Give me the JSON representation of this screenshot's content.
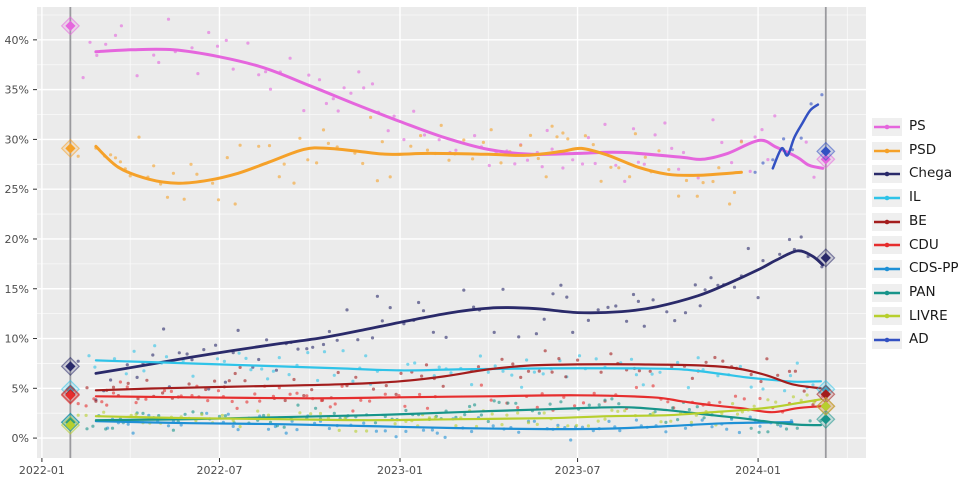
{
  "chart_data": {
    "type": "line",
    "subtype": "poll-tracker: jittered poll scatter + smoothed trend lines + election result diamonds",
    "title": "",
    "legend_position": "right",
    "panel": {
      "bg": "#ebebeb",
      "grid_major_color": "#ffffff",
      "grid_minor_color": "#fafafa"
    },
    "x_axis": {
      "start_date": "2021-12-27",
      "end_date": "2024-04-20",
      "tick_dates": [
        "2022-01-01",
        "2022-07-01",
        "2023-01-01",
        "2023-07-01",
        "2024-01-01"
      ],
      "tick_labels": [
        "2022-01",
        "2022-07",
        "2023-01",
        "2023-07",
        "2024-01"
      ],
      "minor_tick_dates": [
        "2022-04-01",
        "2022-10-01",
        "2023-04-01",
        "2023-10-01",
        "2024-04-01"
      ]
    },
    "y_axis": {
      "unit": "%",
      "min": -2.0,
      "max": 43.3,
      "tick_values": [
        0,
        5,
        10,
        15,
        20,
        25,
        30,
        35,
        40
      ],
      "tick_labels": [
        "0%",
        "5%",
        "10%",
        "15%",
        "20%",
        "25%",
        "30%",
        "35%",
        "40%"
      ],
      "minor_tick_values": [
        2.5,
        7.5,
        12.5,
        17.5,
        22.5,
        27.5,
        32.5,
        37.5,
        42.5
      ]
    },
    "elections": [
      {
        "name": "2022-legislative-election",
        "date": "2022-01-30",
        "line_color": "#9a9a9e"
      },
      {
        "name": "2024-legislative-election",
        "date": "2024-03-10",
        "line_color": "#9a9a9e"
      }
    ],
    "scatter_style": {
      "radius": 1.6,
      "opacity": 0.6,
      "seed": 11,
      "note": "dots are jittered poll results generated around each trend"
    },
    "series": [
      {
        "name": "PS",
        "color": "#e566dd",
        "line_width": 3.0,
        "scatter_amp": 3.0,
        "results": {
          "2022-01-30": 41.4,
          "2024-03-10": 28.0
        },
        "trend": [
          [
            "2022-02-25",
            38.8
          ],
          [
            "2022-04-01",
            39.0
          ],
          [
            "2022-05-15",
            39.0
          ],
          [
            "2022-07-01",
            38.3
          ],
          [
            "2022-08-15",
            37.2
          ],
          [
            "2022-10-01",
            35.4
          ],
          [
            "2022-11-15",
            33.6
          ],
          [
            "2023-01-01",
            31.8
          ],
          [
            "2023-02-15",
            30.2
          ],
          [
            "2023-04-01",
            29.0
          ],
          [
            "2023-05-15",
            28.5
          ],
          [
            "2023-07-01",
            28.6
          ],
          [
            "2023-08-15",
            28.7
          ],
          [
            "2023-10-15",
            28.2
          ],
          [
            "2023-11-05",
            28.0
          ],
          [
            "2023-12-01",
            28.6
          ],
          [
            "2024-01-02",
            29.9
          ],
          [
            "2024-01-20",
            29.2
          ],
          [
            "2024-02-10",
            28.2
          ],
          [
            "2024-02-22",
            27.4
          ],
          [
            "2024-03-07",
            27.1
          ]
        ]
      },
      {
        "name": "PSD",
        "color": "#f5a129",
        "line_width": 3.0,
        "scatter_amp": 2.6,
        "results": {
          "2022-01-30": 29.1
        },
        "trend": [
          [
            "2022-02-25",
            29.3
          ],
          [
            "2022-03-20",
            27.2
          ],
          [
            "2022-04-20",
            26.0
          ],
          [
            "2022-05-20",
            25.6
          ],
          [
            "2022-06-20",
            25.9
          ],
          [
            "2022-07-20",
            26.6
          ],
          [
            "2022-08-20",
            27.7
          ],
          [
            "2022-09-25",
            29.0
          ],
          [
            "2022-10-20",
            29.1
          ],
          [
            "2022-11-20",
            28.8
          ],
          [
            "2022-12-20",
            28.5
          ],
          [
            "2023-02-01",
            28.6
          ],
          [
            "2023-04-01",
            28.5
          ],
          [
            "2023-05-10",
            28.4
          ],
          [
            "2023-06-15",
            28.8
          ],
          [
            "2023-07-05",
            29.1
          ],
          [
            "2023-08-01",
            28.4
          ],
          [
            "2023-09-01",
            27.2
          ],
          [
            "2023-10-01",
            26.5
          ],
          [
            "2023-11-01",
            26.4
          ],
          [
            "2023-12-15",
            26.7
          ]
        ]
      },
      {
        "name": "Chega",
        "color": "#2a2a6a",
        "line_width": 2.8,
        "scatter_amp": 2.6,
        "results": {
          "2022-01-30": 7.2,
          "2024-03-10": 18.1
        },
        "trend": [
          [
            "2022-02-25",
            6.5
          ],
          [
            "2022-04-15",
            7.3
          ],
          [
            "2022-06-01",
            8.1
          ],
          [
            "2022-07-15",
            8.8
          ],
          [
            "2022-09-01",
            9.5
          ],
          [
            "2022-10-15",
            10.1
          ],
          [
            "2022-12-01",
            11.0
          ],
          [
            "2023-01-15",
            11.9
          ],
          [
            "2023-03-01",
            12.7
          ],
          [
            "2023-04-10",
            13.1
          ],
          [
            "2023-05-20",
            13.0
          ],
          [
            "2023-07-01",
            12.6
          ],
          [
            "2023-08-15",
            12.7
          ],
          [
            "2023-09-20",
            13.2
          ],
          [
            "2023-11-01",
            14.3
          ],
          [
            "2023-12-01",
            15.5
          ],
          [
            "2024-01-01",
            16.9
          ],
          [
            "2024-01-20",
            17.9
          ],
          [
            "2024-02-10",
            18.8
          ],
          [
            "2024-02-25",
            18.3
          ],
          [
            "2024-03-07",
            17.4
          ]
        ]
      },
      {
        "name": "IL",
        "color": "#2fc3e8",
        "line_width": 2.2,
        "scatter_amp": 1.5,
        "results": {
          "2022-01-30": 4.9,
          "2024-03-10": 4.9
        },
        "trend": [
          [
            "2022-02-25",
            7.8
          ],
          [
            "2022-05-01",
            7.6
          ],
          [
            "2022-07-01",
            7.4
          ],
          [
            "2022-09-01",
            7.2
          ],
          [
            "2022-11-01",
            7.0
          ],
          [
            "2023-01-01",
            6.8
          ],
          [
            "2023-03-01",
            6.9
          ],
          [
            "2023-06-01",
            7.0
          ],
          [
            "2023-09-01",
            7.0
          ],
          [
            "2023-10-15",
            6.9
          ],
          [
            "2023-11-20",
            6.5
          ],
          [
            "2023-12-20",
            6.1
          ],
          [
            "2024-01-20",
            5.8
          ],
          [
            "2024-02-10",
            5.65
          ],
          [
            "2024-03-05",
            5.7
          ]
        ]
      },
      {
        "name": "BE",
        "color": "#a31d1d",
        "line_width": 2.2,
        "scatter_amp": 1.5,
        "results": {
          "2022-01-30": 4.4,
          "2024-03-10": 4.4
        },
        "trend": [
          [
            "2022-02-25",
            4.8
          ],
          [
            "2022-05-01",
            5.0
          ],
          [
            "2022-08-01",
            5.2
          ],
          [
            "2022-11-01",
            5.4
          ],
          [
            "2023-01-01",
            5.7
          ],
          [
            "2023-02-15",
            6.2
          ],
          [
            "2023-04-01",
            6.9
          ],
          [
            "2023-05-15",
            7.3
          ],
          [
            "2023-07-01",
            7.4
          ],
          [
            "2023-09-01",
            7.4
          ],
          [
            "2023-11-01",
            7.3
          ],
          [
            "2023-12-10",
            7.0
          ],
          [
            "2024-01-10",
            6.3
          ],
          [
            "2024-02-05",
            5.4
          ],
          [
            "2024-03-05",
            5.0
          ]
        ]
      },
      {
        "name": "CDU",
        "color": "#e62e2e",
        "line_width": 2.2,
        "scatter_amp": 1.1,
        "results": {
          "2022-01-30": 4.3,
          "2024-03-10": 3.2
        },
        "trend": [
          [
            "2022-02-25",
            4.2
          ],
          [
            "2022-06-01",
            4.1
          ],
          [
            "2022-10-01",
            4.0
          ],
          [
            "2023-01-01",
            4.1
          ],
          [
            "2023-04-01",
            4.2
          ],
          [
            "2023-07-01",
            4.3
          ],
          [
            "2023-09-15",
            4.1
          ],
          [
            "2023-10-15",
            3.7
          ],
          [
            "2023-11-15",
            3.3
          ],
          [
            "2023-12-15",
            3.0
          ],
          [
            "2024-01-15",
            2.6
          ],
          [
            "2024-02-10",
            3.0
          ],
          [
            "2024-03-05",
            3.2
          ]
        ]
      },
      {
        "name": "CDS-PP",
        "color": "#1e90d6",
        "line_width": 2.2,
        "scatter_amp": 0.85,
        "results": {
          "2022-01-30": 1.6
        },
        "trend": [
          [
            "2022-02-25",
            1.7
          ],
          [
            "2022-06-01",
            1.5
          ],
          [
            "2022-09-01",
            1.4
          ],
          [
            "2022-12-01",
            1.2
          ],
          [
            "2023-03-01",
            1.0
          ],
          [
            "2023-06-01",
            0.9
          ],
          [
            "2023-08-01",
            0.95
          ],
          [
            "2023-10-01",
            1.2
          ],
          [
            "2023-12-01",
            1.5
          ],
          [
            "2024-02-05",
            1.6
          ]
        ]
      },
      {
        "name": "PAN",
        "color": "#17948a",
        "line_width": 2.2,
        "scatter_amp": 1.0,
        "results": {
          "2022-01-30": 1.6,
          "2024-03-10": 1.9
        },
        "trend": [
          [
            "2022-02-25",
            1.8
          ],
          [
            "2022-06-01",
            1.9
          ],
          [
            "2022-09-01",
            2.1
          ],
          [
            "2022-12-01",
            2.3
          ],
          [
            "2023-03-01",
            2.6
          ],
          [
            "2023-06-01",
            2.9
          ],
          [
            "2023-08-15",
            3.1
          ],
          [
            "2023-10-01",
            2.8
          ],
          [
            "2023-11-15",
            2.3
          ],
          [
            "2023-12-15",
            2.0
          ],
          [
            "2024-01-15",
            1.6
          ],
          [
            "2024-02-10",
            1.35
          ],
          [
            "2024-03-05",
            1.3
          ]
        ]
      },
      {
        "name": "LIVRE",
        "color": "#b7cf2e",
        "line_width": 2.2,
        "scatter_amp": 0.9,
        "results": {
          "2022-01-30": 1.3,
          "2024-03-10": 3.2
        },
        "trend": [
          [
            "2022-02-25",
            2.2
          ],
          [
            "2022-06-01",
            2.0
          ],
          [
            "2022-09-01",
            1.9
          ],
          [
            "2022-12-01",
            1.8
          ],
          [
            "2023-03-01",
            1.9
          ],
          [
            "2023-06-01",
            2.0
          ],
          [
            "2023-08-01",
            2.2
          ],
          [
            "2023-10-01",
            2.3
          ],
          [
            "2023-11-15",
            2.6
          ],
          [
            "2023-12-15",
            2.8
          ],
          [
            "2024-01-15",
            3.1
          ],
          [
            "2024-02-10",
            3.5
          ],
          [
            "2024-03-05",
            3.9
          ]
        ]
      },
      {
        "name": "AD",
        "color": "#3351c2",
        "line_width": 2.5,
        "scatter_amp": 1.8,
        "results": {
          "2024-03-10": 28.8
        },
        "trend": [
          [
            "2024-01-16",
            27.1
          ],
          [
            "2024-01-25",
            29.1
          ],
          [
            "2024-01-31",
            28.4
          ],
          [
            "2024-02-07",
            30.2
          ],
          [
            "2024-02-15",
            31.6
          ],
          [
            "2024-02-23",
            32.9
          ],
          [
            "2024-03-02",
            33.5
          ]
        ]
      }
    ]
  }
}
